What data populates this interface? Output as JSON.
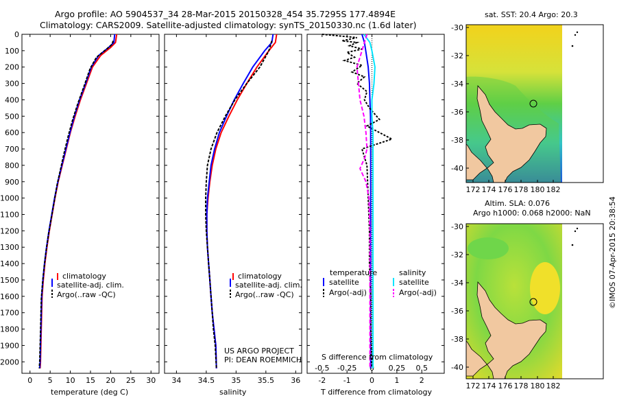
{
  "header": {
    "line1": "Argo profile: AO 5904537_34 28-Mar-2015 20150328_454 35.7295S 177.4894E",
    "line2": "Climatology: CARS2009. Satellite-adjusted climatology: synTS_20150330.nc (1.6d later)"
  },
  "colors": {
    "climatology": "#ff0000",
    "satellite": "#0000ff",
    "argo": "#000000",
    "s_sat": "#00e5ff",
    "s_argo": "#ff00ff"
  },
  "chart_data": [
    {
      "type": "line",
      "name": "temperature-panel",
      "xlabel": "temperature (deg C)",
      "ylabel": "",
      "xlim": [
        -2,
        32
      ],
      "ylim": [
        2070,
        0
      ],
      "xticks": [
        "0",
        "5",
        "10",
        "15",
        "20",
        "25",
        "30"
      ],
      "yticks": [
        "0",
        "100",
        "200",
        "300",
        "400",
        "500",
        "600",
        "700",
        "800",
        "900",
        "1000",
        "1100",
        "1200",
        "1300",
        "1400",
        "1500",
        "1600",
        "1700",
        "1800",
        "1900",
        "2000"
      ],
      "legend": [
        "climatology",
        "satellite-adj. clim.",
        "Argo(..raw -QC)"
      ],
      "series": [
        {
          "name": "climatology",
          "x": [
            21.5,
            21.2,
            20.0,
            17.5,
            15.5,
            14.0,
            12.5,
            11.2,
            10.0,
            9.0,
            8.0,
            7.0,
            6.2,
            5.5,
            4.8,
            4.2,
            3.7,
            3.3,
            3.0,
            2.8,
            2.6,
            2.5
          ],
          "y": [
            0,
            50,
            80,
            130,
            200,
            300,
            400,
            500,
            600,
            700,
            800,
            900,
            1000,
            1100,
            1200,
            1300,
            1400,
            1500,
            1600,
            1800,
            2000,
            2040
          ]
        },
        {
          "name": "satellite-adj. clim.",
          "x": [
            21.0,
            20.8,
            19.5,
            17.0,
            15.2,
            13.8,
            12.3,
            11.0,
            9.9,
            8.9,
            7.9,
            6.9,
            6.1,
            5.4,
            4.7,
            4.1,
            3.6,
            3.2,
            2.9,
            2.7,
            2.5,
            2.4
          ],
          "y": [
            0,
            50,
            80,
            130,
            200,
            300,
            400,
            500,
            600,
            700,
            800,
            900,
            1000,
            1100,
            1200,
            1300,
            1400,
            1500,
            1600,
            1800,
            2000,
            2040
          ]
        },
        {
          "name": "Argo(..raw -QC)",
          "x": [
            20.6,
            20.4,
            19.0,
            16.5,
            14.9,
            13.5,
            11.9,
            10.6,
            9.5,
            8.5,
            7.6,
            6.7,
            6.0,
            5.3,
            4.6,
            4.0,
            3.5,
            3.1,
            2.8,
            2.6,
            2.4,
            2.3
          ],
          "y": [
            40,
            60,
            90,
            140,
            210,
            310,
            420,
            520,
            620,
            720,
            820,
            920,
            1020,
            1120,
            1220,
            1320,
            1420,
            1520,
            1620,
            1820,
            2000,
            2040
          ]
        }
      ]
    },
    {
      "type": "line",
      "name": "salinity-panel",
      "xlabel": "salinity",
      "xlim": [
        33.8,
        36.1
      ],
      "ylim": [
        2070,
        0
      ],
      "xticks": [
        "34",
        "34.5",
        "35",
        "35.5",
        "36"
      ],
      "legend": [
        "climatology",
        "satellite-adj. clim.",
        "Argo(..raw -QC)"
      ],
      "annotation": [
        "US ARGO PROJECT",
        "PI: DEAN ROEMMICH"
      ],
      "series": [
        {
          "name": "climatology",
          "x": [
            35.68,
            35.66,
            35.55,
            35.35,
            35.18,
            35.02,
            34.88,
            34.75,
            34.66,
            34.6,
            34.56,
            34.53,
            34.51,
            34.51,
            34.52,
            34.54,
            34.56,
            34.58,
            34.6,
            34.63,
            34.66,
            34.67
          ],
          "y": [
            0,
            50,
            100,
            200,
            300,
            400,
            500,
            600,
            700,
            800,
            900,
            1000,
            1100,
            1200,
            1300,
            1400,
            1500,
            1600,
            1700,
            1800,
            1900,
            2040
          ]
        },
        {
          "name": "satellite-adj. clim.",
          "x": [
            35.62,
            35.6,
            35.48,
            35.28,
            35.12,
            34.97,
            34.84,
            34.72,
            34.64,
            34.58,
            34.55,
            34.52,
            34.51,
            34.51,
            34.52,
            34.54,
            34.56,
            34.58,
            34.6,
            34.63,
            34.66,
            34.67
          ],
          "y": [
            0,
            50,
            100,
            200,
            300,
            400,
            500,
            600,
            700,
            800,
            900,
            1000,
            1100,
            1200,
            1300,
            1400,
            1500,
            1600,
            1700,
            1800,
            1900,
            2040
          ]
        },
        {
          "name": "Argo(..raw -QC)",
          "x": [
            35.6,
            35.55,
            35.4,
            35.18,
            34.98,
            34.82,
            34.68,
            34.58,
            34.52,
            34.5,
            34.49,
            34.49,
            34.5,
            34.52,
            34.54,
            34.56,
            34.58,
            34.6,
            34.62,
            34.65,
            34.67
          ],
          "y": [
            40,
            100,
            200,
            300,
            400,
            500,
            600,
            700,
            800,
            900,
            1000,
            1100,
            1200,
            1300,
            1400,
            1500,
            1600,
            1700,
            1800,
            1900,
            2040
          ]
        }
      ]
    },
    {
      "type": "line",
      "name": "difference-panel",
      "xlabel": "T difference from climatology",
      "xlabel_top": "S difference from climatology",
      "xlim": [
        -2.6,
        2.9
      ],
      "ylim": [
        2070,
        0
      ],
      "xticks": [
        "-2",
        "-1",
        "0",
        "1",
        "2"
      ],
      "xticks_top": [
        "-0.5",
        "-0.25",
        "0",
        "0.25",
        "0.5"
      ],
      "legend": [
        "temperature",
        "satellite",
        "Argo(-adj)",
        "salinity",
        "satellite",
        "Argo(-adj)"
      ],
      "series": [
        {
          "name": "T satellite",
          "x": [
            -0.4,
            -0.3,
            -0.25,
            -0.2,
            -0.15,
            -0.1,
            -0.08,
            -0.06,
            -0.05,
            -0.05,
            -0.05,
            -0.05,
            -0.05,
            -0.05,
            -0.05,
            -0.05,
            -0.05
          ],
          "y": [
            0,
            50,
            100,
            150,
            200,
            300,
            400,
            500,
            600,
            700,
            800,
            900,
            1000,
            1200,
            1500,
            1800,
            2040
          ]
        },
        {
          "name": "T Argo(-adj)",
          "x": [
            -2.0,
            -0.6,
            -1.2,
            -0.6,
            -0.9,
            -0.4,
            -1.0,
            -0.7,
            -1.1,
            -0.4,
            -0.8,
            -0.3,
            -0.6,
            -0.2,
            -0.3,
            -0.1,
            0.3,
            -0.2,
            0.8,
            -0.4,
            -0.2,
            -0.15,
            -0.1,
            -0.1,
            -0.05,
            -0.05,
            0.0
          ],
          "y": [
            0,
            20,
            40,
            50,
            70,
            90,
            110,
            140,
            160,
            190,
            230,
            260,
            300,
            350,
            400,
            450,
            520,
            560,
            640,
            700,
            800,
            1000,
            1200,
            1400,
            1600,
            1800,
            2040
          ]
        },
        {
          "name": "S satellite",
          "x": [
            -0.08,
            -0.02,
            0.0,
            0.03,
            0.02,
            0.0,
            0.0,
            0.01,
            0.01,
            0.01,
            0.01,
            0.01,
            0.01,
            0.01
          ],
          "y": [
            0,
            50,
            100,
            200,
            300,
            400,
            500,
            600,
            800,
            1000,
            1200,
            1500,
            1800,
            2040
          ]
        },
        {
          "name": "S Argo(-adj)",
          "x": [
            -0.05,
            -0.15,
            -0.12,
            -0.08,
            -0.06,
            -0.05,
            -0.07,
            -0.12,
            -0.06,
            -0.03,
            -0.02,
            -0.02,
            -0.02,
            -0.02
          ],
          "y": [
            0,
            200,
            400,
            500,
            600,
            700,
            750,
            820,
            900,
            1000,
            1200,
            1500,
            1800,
            2040
          ]
        }
      ]
    }
  ],
  "maps": {
    "top": {
      "title": "sat. SST: 20.4  Argo: 20.3",
      "xticks": [
        "172",
        "174",
        "176",
        "178",
        "180",
        "182"
      ],
      "yticks": [
        "-30",
        "-32",
        "-34",
        "-36",
        "-38",
        "-40"
      ]
    },
    "bottom": {
      "title_line1": "Altim. SLA: 0.076",
      "title_line2": "Argo h1000: 0.068 h2000: NaN",
      "xticks": [
        "172",
        "174",
        "176",
        "178",
        "180",
        "182"
      ],
      "yticks": [
        "-30",
        "-32",
        "-34",
        "-36",
        "-38",
        "-40"
      ]
    }
  },
  "credit": "©IMOS 07-Apr-2015 20:38:54"
}
